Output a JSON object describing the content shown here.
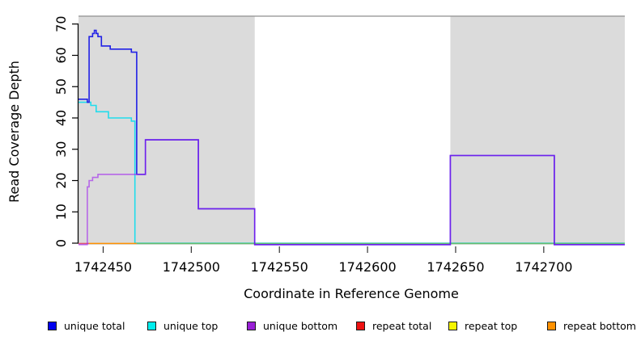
{
  "chart_data": {
    "type": "line",
    "subtype": "step-coverage-plot",
    "title": "",
    "xlabel": "Coordinate in Reference Genome",
    "ylabel": "Read Coverage Depth",
    "xlim": [
      1742436,
      1742746
    ],
    "ylim": [
      0,
      72
    ],
    "x_ticks": [
      1742450,
      1742500,
      1742550,
      1742600,
      1742650,
      1742700
    ],
    "y_ticks": [
      0,
      10,
      20,
      30,
      40,
      50,
      60,
      70
    ],
    "grid": false,
    "legend_position": "bottom",
    "shaded_color": "#dbdbdb",
    "shaded_border_color": "#8f8f8f",
    "shaded_regions": [
      {
        "from": 1742436,
        "to": 1742536
      },
      {
        "from": 1742647,
        "to": 1742746
      }
    ],
    "series": [
      {
        "name": "unique top",
        "color": "#00EEEE",
        "line_color": "#00DCEE",
        "line_opacity": 0.85,
        "zero_offset": false,
        "steps": [
          [
            1742436,
            45
          ],
          [
            1742443,
            44
          ],
          [
            1742446,
            42
          ],
          [
            1742453,
            40
          ],
          [
            1742466,
            39
          ],
          [
            1742468,
            0
          ],
          [
            1742746,
            0
          ]
        ]
      },
      {
        "name": "unique total",
        "color": "#0000EE",
        "line_color": "#2121E6",
        "line_opacity": 1.0,
        "zero_offset": true,
        "steps": [
          [
            1742436,
            46
          ],
          [
            1742441,
            45
          ],
          [
            1742442,
            66
          ],
          [
            1742444,
            67
          ],
          [
            1742445,
            68
          ],
          [
            1742446,
            67
          ],
          [
            1742447,
            66
          ],
          [
            1742449,
            63
          ],
          [
            1742454,
            62
          ],
          [
            1742466,
            61
          ],
          [
            1742469,
            22
          ],
          [
            1742474,
            33
          ],
          [
            1742504,
            11
          ],
          [
            1742536,
            0
          ],
          [
            1742647,
            28
          ],
          [
            1742706,
            0
          ],
          [
            1742746,
            0
          ]
        ]
      },
      {
        "name": "unique bottom",
        "color": "#9920D6",
        "line_color": "#A020F0",
        "line_opacity": 0.62,
        "zero_offset": true,
        "steps": [
          [
            1742436,
            0
          ],
          [
            1742441,
            18
          ],
          [
            1742442,
            20
          ],
          [
            1742444,
            21
          ],
          [
            1742447,
            22
          ],
          [
            1742474,
            33
          ],
          [
            1742504,
            11
          ],
          [
            1742536,
            0
          ],
          [
            1742647,
            28
          ],
          [
            1742706,
            0
          ],
          [
            1742746,
            0
          ]
        ]
      },
      {
        "name": "repeat total",
        "color": "#EE1111",
        "line_color": "#E05575",
        "line_opacity": 1.0,
        "zero_offset": false,
        "steps": [
          [
            1742436,
            0
          ],
          [
            1742746,
            0
          ]
        ]
      },
      {
        "name": "repeat top",
        "color": "#F5F500",
        "line_color": "#F5F500",
        "line_opacity": 1.0,
        "zero_offset": false,
        "steps": [
          [
            1742436,
            0
          ],
          [
            1742746,
            0
          ]
        ]
      },
      {
        "name": "repeat bottom",
        "color": "#FF9100",
        "line_color": "#FF9100",
        "line_opacity": 1.0,
        "zero_offset": false,
        "steps": [
          [
            1742436,
            0
          ],
          [
            1742469,
            0
          ]
        ]
      }
    ],
    "baseline_segments": [
      {
        "name": "repeat-total-at-zero",
        "from": 1742436,
        "to": 1742442,
        "color": "#E05575"
      },
      {
        "name": "repeat-bottom-at-zero",
        "from": 1742442,
        "to": 1742469,
        "color": "#FF9100"
      },
      {
        "name": "top-lines-overlap-at-zero",
        "from": 1742469,
        "to": 1742746,
        "color": "#66BE6E"
      }
    ],
    "legend": [
      {
        "label": "unique total",
        "color": "#0000EE"
      },
      {
        "label": "unique top",
        "color": "#00EEEE"
      },
      {
        "label": "unique bottom",
        "color": "#9920D6"
      },
      {
        "label": "repeat total",
        "color": "#EE1111"
      },
      {
        "label": "repeat top",
        "color": "#F5F500"
      },
      {
        "label": "repeat bottom",
        "color": "#FF9100"
      }
    ]
  }
}
